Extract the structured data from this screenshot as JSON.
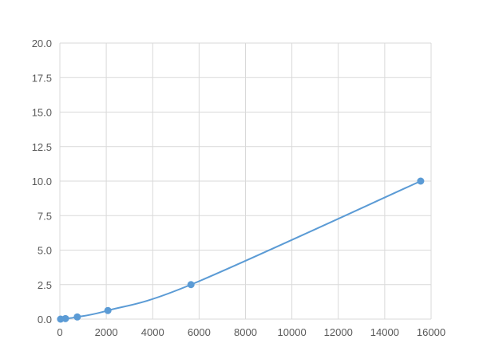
{
  "chart_data": {
    "type": "scatter",
    "title": "",
    "xlabel": "",
    "ylabel": "",
    "xlim": [
      0,
      16000
    ],
    "ylim": [
      0,
      20
    ],
    "xticks": [
      "0",
      "2000",
      "4000",
      "6000",
      "8000",
      "10000",
      "12000",
      "14000",
      "16000"
    ],
    "yticks": [
      "0.0",
      "2.5",
      "5.0",
      "7.5",
      "10.0",
      "12.5",
      "15.0",
      "17.5",
      "20.0"
    ],
    "grid": true,
    "legend": "none",
    "series_color": "#5B9BD5",
    "line": "smoothed",
    "points": [
      {
        "x": 30,
        "y": 0
      },
      {
        "x": 240,
        "y": 0.039
      },
      {
        "x": 750,
        "y": 0.156
      },
      {
        "x": 2070,
        "y": 0.625
      },
      {
        "x": 5650,
        "y": 2.5
      },
      {
        "x": 15550,
        "y": 10
      }
    ]
  }
}
